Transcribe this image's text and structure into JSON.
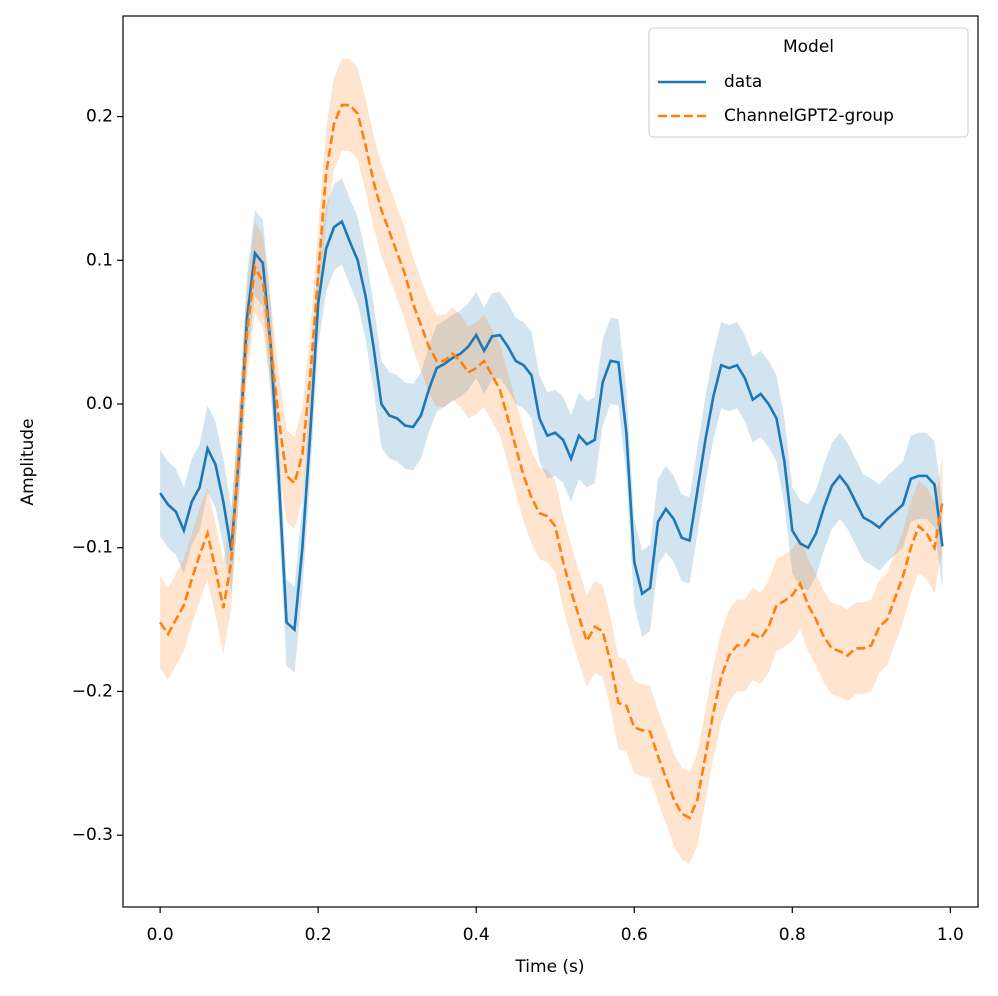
{
  "chart_data": {
    "type": "line",
    "xlabel": "Time (s)",
    "ylabel": "Amplitude",
    "legend_title": "Model",
    "legend": "upper right",
    "x": [
      0,
      0.01,
      0.02,
      0.03,
      0.04,
      0.05,
      0.06,
      0.07,
      0.08,
      0.09,
      0.1,
      0.11,
      0.12,
      0.13,
      0.14,
      0.15,
      0.16,
      0.17,
      0.18,
      0.19,
      0.2,
      0.21,
      0.22,
      0.23,
      0.24,
      0.25,
      0.26,
      0.27,
      0.28,
      0.29,
      0.3,
      0.31,
      0.32,
      0.33,
      0.34,
      0.35,
      0.36,
      0.37,
      0.38,
      0.39,
      0.4,
      0.41,
      0.42,
      0.43,
      0.44,
      0.45,
      0.46,
      0.47,
      0.48,
      0.49,
      0.5,
      0.51,
      0.52,
      0.53,
      0.54,
      0.55,
      0.56,
      0.57,
      0.58,
      0.59,
      0.6,
      0.61,
      0.62,
      0.63,
      0.64,
      0.65,
      0.66,
      0.67,
      0.68,
      0.69,
      0.7,
      0.71,
      0.72,
      0.73,
      0.74,
      0.75,
      0.76,
      0.77,
      0.78,
      0.79,
      0.8,
      0.81,
      0.82,
      0.83,
      0.84,
      0.85,
      0.86,
      0.87,
      0.88,
      0.89,
      0.9,
      0.91,
      0.92,
      0.93,
      0.94,
      0.95,
      0.96,
      0.97,
      0.98,
      0.99
    ],
    "series": [
      {
        "name": "data",
        "color": "#1f77b4",
        "linestyle": "solid",
        "error": 0.03,
        "values": [
          -0.062,
          -0.07,
          -0.075,
          -0.088,
          -0.068,
          -0.058,
          -0.031,
          -0.042,
          -0.068,
          -0.102,
          -0.035,
          0.06,
          0.105,
          0.098,
          0.04,
          -0.05,
          -0.152,
          -0.157,
          -0.1,
          -0.02,
          0.07,
          0.108,
          0.123,
          0.127,
          0.113,
          0.1,
          0.075,
          0.04,
          0.0,
          -0.008,
          -0.01,
          -0.015,
          -0.016,
          -0.008,
          0.01,
          0.025,
          0.028,
          0.032,
          0.035,
          0.04,
          0.048,
          0.037,
          0.047,
          0.048,
          0.04,
          0.03,
          0.027,
          0.02,
          -0.01,
          -0.022,
          -0.02,
          -0.025,
          -0.038,
          -0.022,
          -0.028,
          -0.025,
          0.015,
          0.03,
          0.029,
          -0.02,
          -0.11,
          -0.132,
          -0.128,
          -0.082,
          -0.073,
          -0.08,
          -0.093,
          -0.095,
          -0.06,
          -0.025,
          0.005,
          0.027,
          0.025,
          0.027,
          0.018,
          0.003,
          0.007,
          0.0,
          -0.01,
          -0.04,
          -0.088,
          -0.097,
          -0.1,
          -0.09,
          -0.072,
          -0.057,
          -0.05,
          -0.057,
          -0.068,
          -0.079,
          -0.082,
          -0.086,
          -0.08,
          -0.075,
          -0.07,
          -0.052,
          -0.05,
          -0.05,
          -0.056,
          -0.099
        ]
      },
      {
        "name": "ChannelGPT2-group",
        "color": "#ff7f0e",
        "linestyle": "dashed",
        "error": 0.032,
        "values": [
          -0.152,
          -0.16,
          -0.15,
          -0.14,
          -0.122,
          -0.105,
          -0.09,
          -0.115,
          -0.142,
          -0.11,
          -0.03,
          0.05,
          0.095,
          0.085,
          0.04,
          -0.01,
          -0.05,
          -0.055,
          -0.035,
          0.02,
          0.09,
          0.16,
          0.195,
          0.208,
          0.208,
          0.202,
          0.18,
          0.155,
          0.135,
          0.12,
          0.105,
          0.09,
          0.07,
          0.055,
          0.04,
          0.03,
          0.03,
          0.035,
          0.03,
          0.022,
          0.025,
          0.03,
          0.02,
          0.01,
          -0.01,
          -0.03,
          -0.05,
          -0.065,
          -0.076,
          -0.078,
          -0.085,
          -0.11,
          -0.13,
          -0.148,
          -0.165,
          -0.155,
          -0.158,
          -0.18,
          -0.208,
          -0.21,
          -0.225,
          -0.227,
          -0.228,
          -0.245,
          -0.26,
          -0.275,
          -0.285,
          -0.288,
          -0.275,
          -0.245,
          -0.215,
          -0.19,
          -0.175,
          -0.168,
          -0.168,
          -0.16,
          -0.163,
          -0.155,
          -0.14,
          -0.137,
          -0.133,
          -0.125,
          -0.14,
          -0.15,
          -0.162,
          -0.17,
          -0.172,
          -0.175,
          -0.17,
          -0.17,
          -0.168,
          -0.155,
          -0.15,
          -0.135,
          -0.12,
          -0.1,
          -0.085,
          -0.09,
          -0.1,
          -0.068
        ]
      }
    ],
    "xlim": [
      -0.047,
      1.035
    ],
    "ylim": [
      -0.35,
      0.27
    ],
    "xticks": [
      {
        "value": 0,
        "label": "0.0"
      },
      0.2,
      0.4,
      0.6,
      0.8,
      {
        "value": 1,
        "label": "1.0"
      }
    ],
    "yticks": [
      {
        "value": -0.3,
        "label": "−0.3"
      },
      {
        "value": -0.2,
        "label": "−0.2"
      },
      {
        "value": -0.1,
        "label": "−0.1"
      },
      {
        "value": 0,
        "label": "0.0"
      },
      0.1,
      0.2
    ],
    "grid": false
  }
}
